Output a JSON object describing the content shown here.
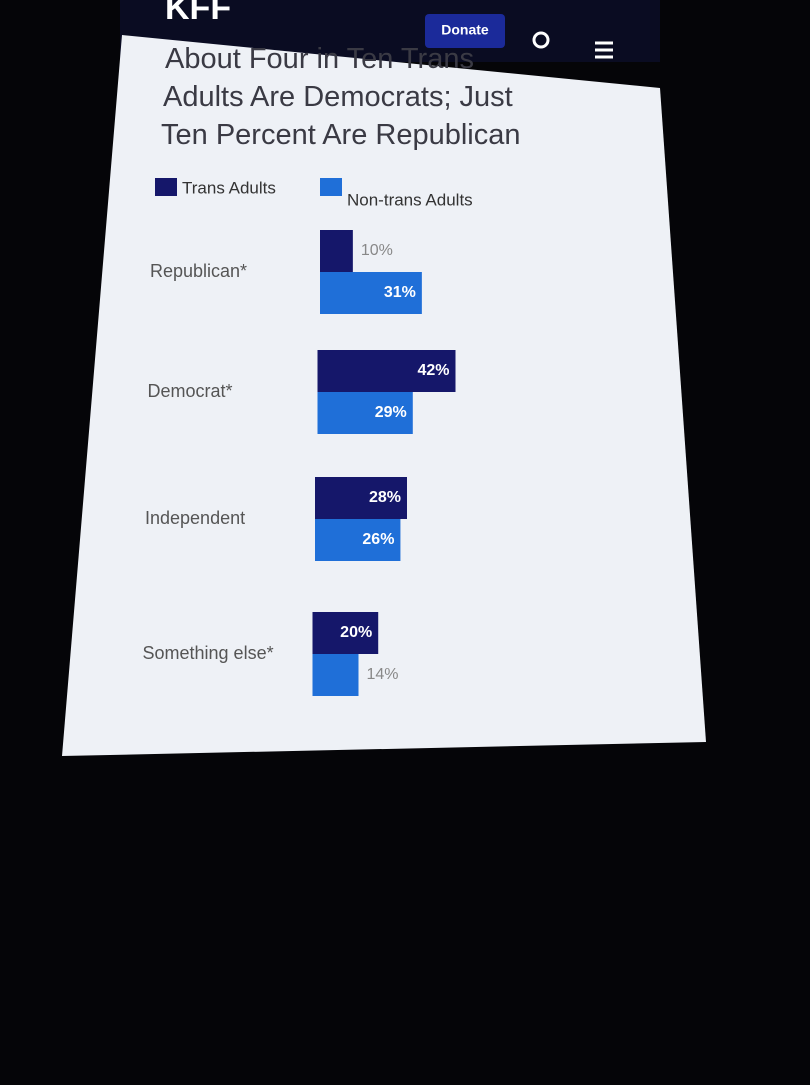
{
  "header": {
    "logo": "KFF",
    "button": "Donate"
  },
  "chart_data": {
    "type": "bar",
    "orientation": "horizontal",
    "title": "About Four in Ten Trans Adults Are Democrats; Just Ten Percent Are Republican",
    "categories": [
      "Republican*",
      "Democrat*",
      "Independent",
      "Something else*"
    ],
    "series": [
      {
        "name": "Trans Adults",
        "color": "#15176a",
        "values": [
          10,
          42,
          28,
          20
        ],
        "value_labels": [
          "10%",
          "42%",
          "28%",
          "20%"
        ]
      },
      {
        "name": "Non-trans Adults",
        "color": "#1f6fd8",
        "values": [
          31,
          29,
          26,
          14
        ],
        "value_labels": [
          "31%",
          "29%",
          "26%",
          "14%"
        ]
      }
    ],
    "legend": "top-left"
  }
}
